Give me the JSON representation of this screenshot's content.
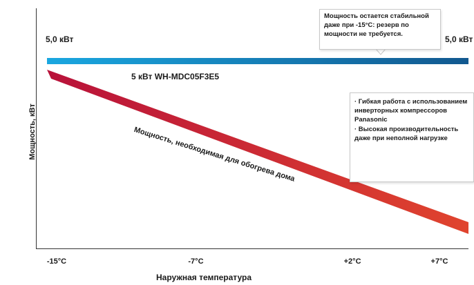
{
  "chart_data": {
    "type": "line",
    "ylabel": "Мощность, кВт",
    "xlabel": "Наружная температура",
    "x_ticks": [
      "-15°C",
      "-7°C",
      "+2°C",
      "+7°C"
    ],
    "x_values": [
      -15,
      -7,
      2,
      7
    ],
    "xlim": [
      -15.3,
      7.7
    ],
    "grid": false,
    "series": [
      {
        "name": "5 кВт WH-MDC05F3E5",
        "kind": "flat-band",
        "color_start": "#1aa7e0",
        "color_end": "#12588f",
        "values": [
          5.0,
          5.0,
          5.0,
          5.0
        ]
      },
      {
        "name": "Мощность, необходимая для обогрева дома",
        "kind": "falling-band",
        "color_start": "#b8123a",
        "color_end": "#e0442e"
      }
    ],
    "labels": {
      "left_value": "5,0 кВт",
      "right_value": "5,0 кВт"
    },
    "annotations": {
      "top_callout": "Мощность остается стабильной даже при -15°C: резерв по мощности не требуется.",
      "right_callout": [
        "· Гибкая работа с использованием инверторных компрессоров Panasonic",
        "· Высокая производительность даже при неполной нагрузке"
      ]
    }
  }
}
